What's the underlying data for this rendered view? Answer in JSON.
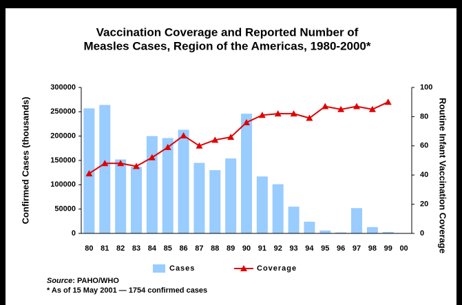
{
  "chart_data": {
    "type": "bar",
    "title": [
      "Vaccination Coverage and Reported Number of",
      "Measles Cases, Region of the Americas, 1980-2000*"
    ],
    "ylabel": "Confirmed Cases (thousands)",
    "y2label": "Routine Infant Vaccination Coverage",
    "categories": [
      "80",
      "81",
      "82",
      "83",
      "84",
      "85",
      "86",
      "87",
      "88",
      "89",
      "90",
      "91",
      "92",
      "93",
      "94",
      "95",
      "96",
      "97",
      "98",
      "99",
      "00"
    ],
    "series": [
      {
        "name": "Cases",
        "type": "bar",
        "color": "#99ccff",
        "values": [
          257000,
          264000,
          152000,
          137000,
          200000,
          196000,
          213000,
          145000,
          130000,
          154000,
          246000,
          117000,
          101000,
          55000,
          24000,
          6000,
          2000,
          52000,
          13000,
          3000,
          null
        ]
      },
      {
        "name": "Coverage",
        "type": "line",
        "axis": "y2",
        "color": "#e00000",
        "values": [
          41,
          48,
          48,
          46,
          52,
          59,
          67,
          60,
          64,
          66,
          76,
          81,
          82,
          82,
          79,
          87,
          85,
          87,
          85,
          90,
          null
        ]
      }
    ],
    "ylim": [
      0,
      300000
    ],
    "yticks": [
      0,
      50000,
      100000,
      150000,
      200000,
      250000,
      300000
    ],
    "y2lim": [
      0,
      100
    ],
    "y2ticks": [
      0,
      20,
      40,
      60,
      80,
      100
    ],
    "source": [
      "Source",
      ": PAHO/WHO"
    ],
    "footnote": "* As of 15 May 2001 — 1754 confirmed cases"
  }
}
